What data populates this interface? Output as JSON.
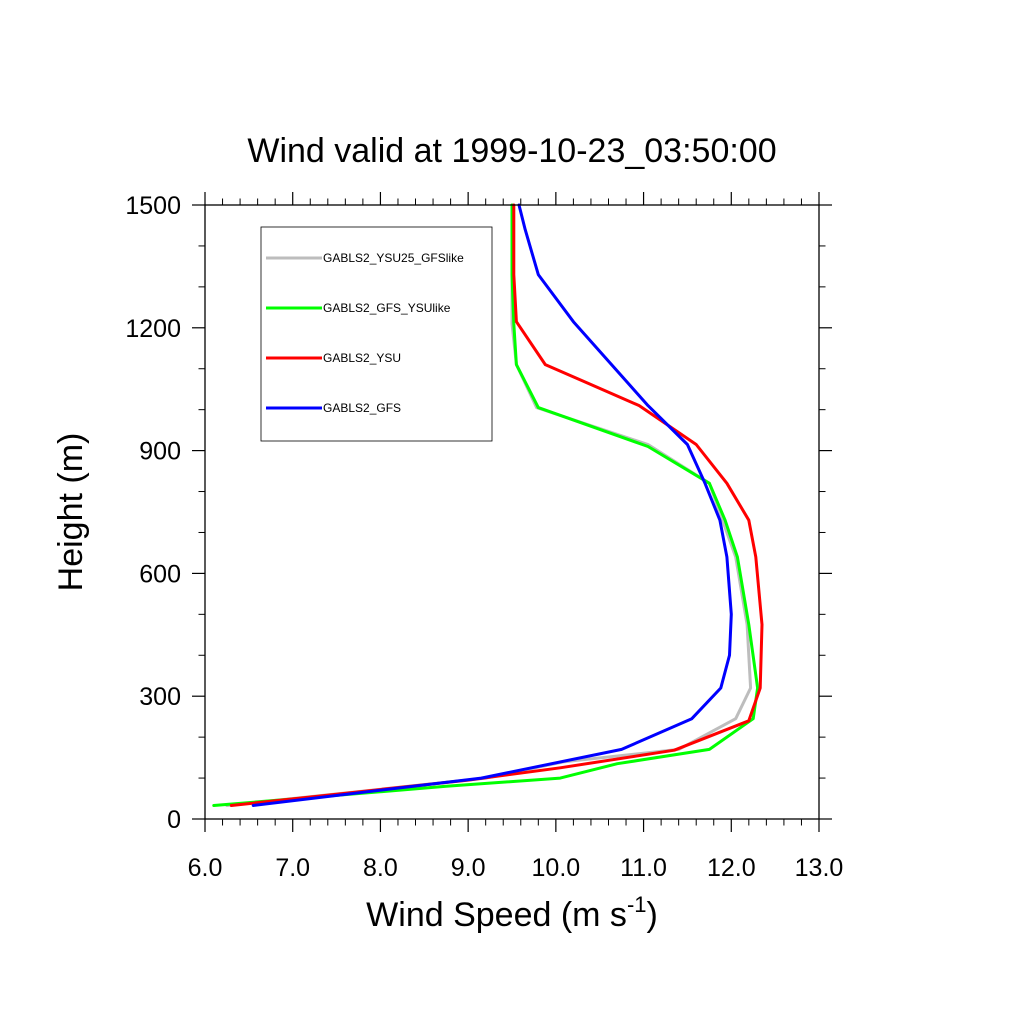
{
  "chart_data": {
    "type": "line",
    "title": "Wind valid at 1999-10-23_03:50:00",
    "xlabel": "Wind Speed (m s",
    "xlabel_superscript": "-1",
    "xlabel_close": ")",
    "ylabel": "Height (m)",
    "xlim": [
      6.0,
      13.0
    ],
    "ylim": [
      0,
      1500
    ],
    "xticks": [
      6.0,
      7.0,
      8.0,
      9.0,
      10.0,
      11.0,
      12.0,
      13.0
    ],
    "xtick_labels": [
      "6.0",
      "7.0",
      "8.0",
      "9.0",
      "10.0",
      "11.0",
      "12.0",
      "13.0"
    ],
    "yticks": [
      0,
      300,
      600,
      900,
      1200,
      1500
    ],
    "ytick_labels": [
      "0",
      "300",
      "600",
      "900",
      "1200",
      "1500"
    ],
    "grid": false,
    "legend_position": "top-left",
    "series": [
      {
        "name": "GABLS2_YSU25_GFSlike",
        "color": "#bdbdbd",
        "points": [
          [
            6.25,
            33
          ],
          [
            9.2,
            100
          ],
          [
            10.1,
            140
          ],
          [
            11.4,
            170
          ],
          [
            12.05,
            245
          ],
          [
            12.22,
            320
          ],
          [
            12.18,
            475
          ],
          [
            12.05,
            640
          ],
          [
            11.9,
            730
          ],
          [
            11.75,
            820
          ],
          [
            11.05,
            915
          ],
          [
            9.78,
            1005
          ],
          [
            9.55,
            1110
          ],
          [
            9.5,
            1210
          ],
          [
            9.5,
            1330
          ],
          [
            9.5,
            1500
          ]
        ]
      },
      {
        "name": "GABLS2_GFS_YSUlike",
        "color": "#00ff00",
        "points": [
          [
            6.1,
            33
          ],
          [
            8.75,
            80
          ],
          [
            10.05,
            100
          ],
          [
            10.7,
            135
          ],
          [
            11.75,
            170
          ],
          [
            12.25,
            245
          ],
          [
            12.3,
            320
          ],
          [
            12.2,
            475
          ],
          [
            12.07,
            640
          ],
          [
            11.93,
            730
          ],
          [
            11.75,
            820
          ],
          [
            11.05,
            910
          ],
          [
            9.8,
            1005
          ],
          [
            9.55,
            1110
          ],
          [
            9.52,
            1210
          ],
          [
            9.5,
            1330
          ],
          [
            9.5,
            1500
          ]
        ]
      },
      {
        "name": "GABLS2_YSU",
        "color": "#ff0000",
        "points": [
          [
            6.3,
            33
          ],
          [
            9.0,
            95
          ],
          [
            10.05,
            125
          ],
          [
            11.35,
            168
          ],
          [
            12.2,
            240
          ],
          [
            12.33,
            320
          ],
          [
            12.35,
            475
          ],
          [
            12.28,
            640
          ],
          [
            12.2,
            730
          ],
          [
            11.95,
            820
          ],
          [
            11.6,
            915
          ],
          [
            10.95,
            1010
          ],
          [
            9.88,
            1110
          ],
          [
            9.55,
            1215
          ],
          [
            9.52,
            1330
          ],
          [
            9.52,
            1500
          ]
        ]
      },
      {
        "name": "GABLS2_GFS",
        "color": "#0000ff",
        "points": [
          [
            6.55,
            33
          ],
          [
            9.15,
            100
          ],
          [
            10.75,
            170
          ],
          [
            11.55,
            245
          ],
          [
            11.88,
            320
          ],
          [
            11.98,
            400
          ],
          [
            12.0,
            500
          ],
          [
            11.95,
            640
          ],
          [
            11.87,
            730
          ],
          [
            11.7,
            820
          ],
          [
            11.5,
            915
          ],
          [
            11.05,
            1010
          ],
          [
            10.2,
            1215
          ],
          [
            9.8,
            1330
          ],
          [
            9.65,
            1440
          ],
          [
            9.58,
            1500
          ]
        ]
      }
    ]
  }
}
